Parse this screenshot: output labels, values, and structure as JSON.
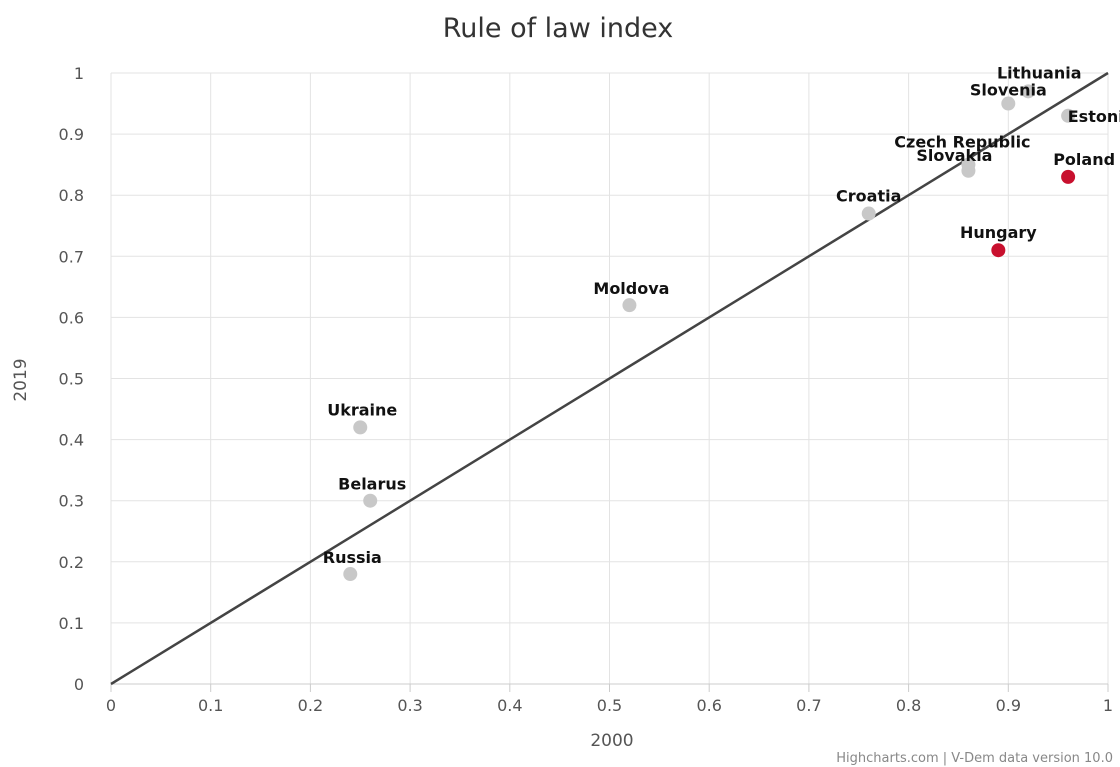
{
  "chart_data": {
    "type": "scatter",
    "title": "Rule of law index",
    "xlabel": "2000",
    "ylabel": "2019",
    "xlim": [
      0,
      1
    ],
    "ylim": [
      0,
      1
    ],
    "x_ticks": [
      "0",
      "0.1",
      "0.2",
      "0.3",
      "0.4",
      "0.5",
      "0.6",
      "0.7",
      "0.8",
      "0.9",
      "1"
    ],
    "y_ticks": [
      "0",
      "0.1",
      "0.2",
      "0.3",
      "0.4",
      "0.5",
      "0.6",
      "0.7",
      "0.8",
      "0.9",
      "1"
    ],
    "grid": true,
    "reference_line": {
      "from": [
        0,
        0
      ],
      "to": [
        1,
        1
      ]
    },
    "points": [
      {
        "label": "Lithuania",
        "x": 0.92,
        "y": 0.97,
        "color": "#c8c8c8"
      },
      {
        "label": "Slovenia",
        "x": 0.9,
        "y": 0.95,
        "color": "#c8c8c8"
      },
      {
        "label": "Estonia",
        "x": 0.96,
        "y": 0.93,
        "color": "#c8c8c8"
      },
      {
        "label": "Czech Republic",
        "x": 0.86,
        "y": 0.85,
        "color": "#c8c8c8"
      },
      {
        "label": "Slovakia",
        "x": 0.86,
        "y": 0.84,
        "color": "#c8c8c8"
      },
      {
        "label": "Poland",
        "x": 0.96,
        "y": 0.83,
        "color": "#c8102e"
      },
      {
        "label": "Croatia",
        "x": 0.76,
        "y": 0.77,
        "color": "#c8c8c8"
      },
      {
        "label": "Hungary",
        "x": 0.89,
        "y": 0.71,
        "color": "#c8102e"
      },
      {
        "label": "Moldova",
        "x": 0.52,
        "y": 0.62,
        "color": "#c8c8c8"
      },
      {
        "label": "Ukraine",
        "x": 0.25,
        "y": 0.42,
        "color": "#c8c8c8"
      },
      {
        "label": "Belarus",
        "x": 0.26,
        "y": 0.3,
        "color": "#c8c8c8"
      },
      {
        "label": "Russia",
        "x": 0.24,
        "y": 0.18,
        "color": "#c8c8c8"
      }
    ]
  },
  "credits": "Highcharts.com | V-Dem data version 10.0"
}
